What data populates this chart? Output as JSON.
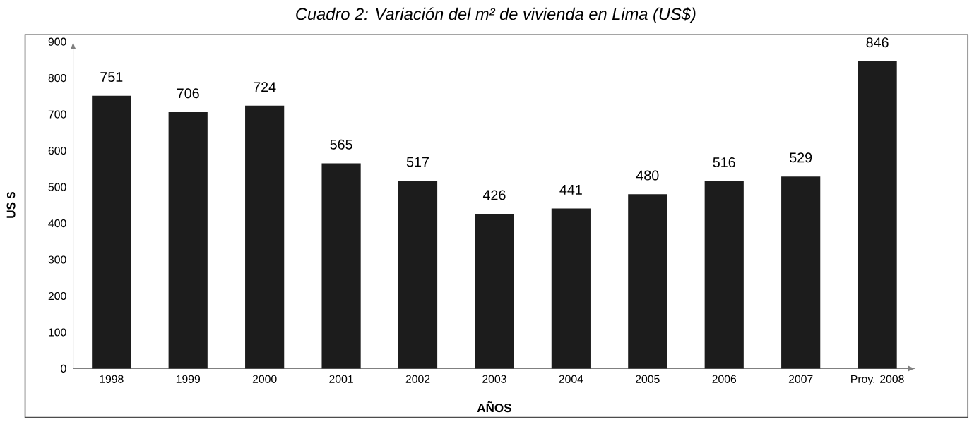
{
  "chart_data": {
    "type": "bar",
    "title": "Cuadro 2: Variación del m² de vivienda en Lima (US$)",
    "xlabel": "AÑOS",
    "ylabel": "US $",
    "categories": [
      "1998",
      "1999",
      "2000",
      "2001",
      "2002",
      "2003",
      "2004",
      "2005",
      "2006",
      "2007",
      "Proy. 2008"
    ],
    "values": [
      751,
      706,
      724,
      565,
      517,
      426,
      441,
      480,
      516,
      529,
      846
    ],
    "color": "#1c1c1c",
    "ylim": [
      0,
      900
    ],
    "yticks": [
      0,
      100,
      200,
      300,
      400,
      500,
      600,
      700,
      800,
      900
    ],
    "grid": false,
    "data_labels": true
  }
}
